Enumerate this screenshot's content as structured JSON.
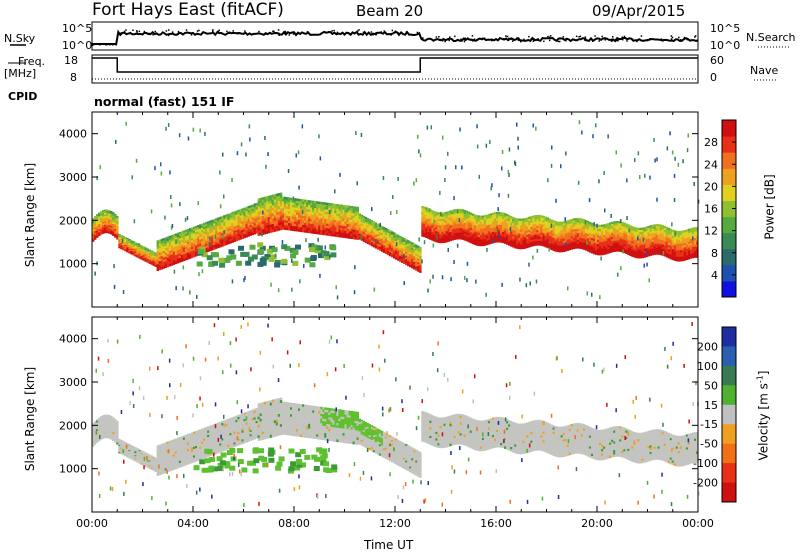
{
  "header": {
    "station": "Fort Hays East (fitACF)",
    "beam": "Beam 20",
    "date": "09/Apr/2015"
  },
  "ctrl": {
    "nsky_label": "N.Sky",
    "nsearch_label": "N.Search",
    "freq_label": "Freq.",
    "freq_unit": "[MHz]",
    "nave_label": "Nave",
    "cpid_label": "CPID",
    "cpid_text": "normal (fast) 151 IF",
    "noise_ticks_left": [
      "10^5",
      "10^0"
    ],
    "noise_ticks_right": [
      "10^5",
      "10^0"
    ],
    "freq_ticks": [
      "18",
      "8"
    ],
    "nave_ticks": [
      "60",
      "0"
    ]
  },
  "chart_data": [
    {
      "type": "heatmap",
      "title": "Power",
      "ylabel": "Slant Range [km]",
      "xlabel": "",
      "xlim": [
        "00:00",
        "24:00"
      ],
      "ylim": [
        0,
        4500
      ],
      "colorbar_label": "Power [dB]",
      "colorbar_ticks": [
        4,
        8,
        12,
        16,
        20,
        24,
        28
      ],
      "colorbar_range": [
        0,
        32
      ],
      "colorbar_colors": [
        "#1010e0",
        "#1e50b0",
        "#2a6a6a",
        "#3a8a55",
        "#55aa40",
        "#90c030",
        "#e0d020",
        "#f0a020",
        "#f07020",
        "#e83018",
        "#d01010"
      ],
      "echo_regions": [
        {
          "x": [
            0.0,
            13.0
          ],
          "y": [
            900,
            3000
          ],
          "dominant": "green"
        },
        {
          "x": [
            13.0,
            24.0
          ],
          "y": [
            1500,
            2500
          ],
          "dominant": "orange"
        }
      ]
    },
    {
      "type": "heatmap",
      "title": "Velocity",
      "ylabel": "Slant Range [km]",
      "xlabel": "Time UT",
      "xlim": [
        "00:00",
        "24:00"
      ],
      "ylim": [
        0,
        4500
      ],
      "colorbar_label": "Velocity [m s^-1]",
      "colorbar_ticks": [
        200,
        100,
        50,
        15,
        -15,
        -50,
        -100,
        -200
      ],
      "colorbar_colors": [
        "#1c2ea0",
        "#2a5fb0",
        "#3a7a50",
        "#50b030",
        "#c0c0c0",
        "#f0a020",
        "#f07018",
        "#e83018",
        "#d01010"
      ],
      "echo_regions": [
        {
          "x": [
            0.0,
            13.0
          ],
          "y": [
            900,
            3000
          ],
          "dominant": "grey"
        },
        {
          "x": [
            4.0,
            9.5
          ],
          "y": [
            1000,
            1500
          ],
          "dominant": "green"
        },
        {
          "x": [
            13.0,
            24.0
          ],
          "y": [
            1500,
            2500
          ],
          "dominant": "grey"
        }
      ]
    }
  ],
  "axis": {
    "x_ticks": [
      "00:00",
      "04:00",
      "08:00",
      "12:00",
      "16:00",
      "20:00",
      "00:00"
    ],
    "y_ticks": [
      "1000",
      "2000",
      "3000",
      "4000"
    ],
    "ylabel": "Slant Range [km]",
    "xlabel": "Time UT",
    "power_label": "Power [dB]",
    "power_ticks": [
      "28",
      "24",
      "20",
      "16",
      "12",
      "8",
      "4"
    ],
    "vel_label": "Velocity [m s",
    "vel_label_sup": "-1",
    "vel_label_end": "]",
    "vel_ticks": [
      "200",
      "100",
      "50",
      "15",
      "-15",
      "-50",
      "-100",
      "-200"
    ]
  }
}
